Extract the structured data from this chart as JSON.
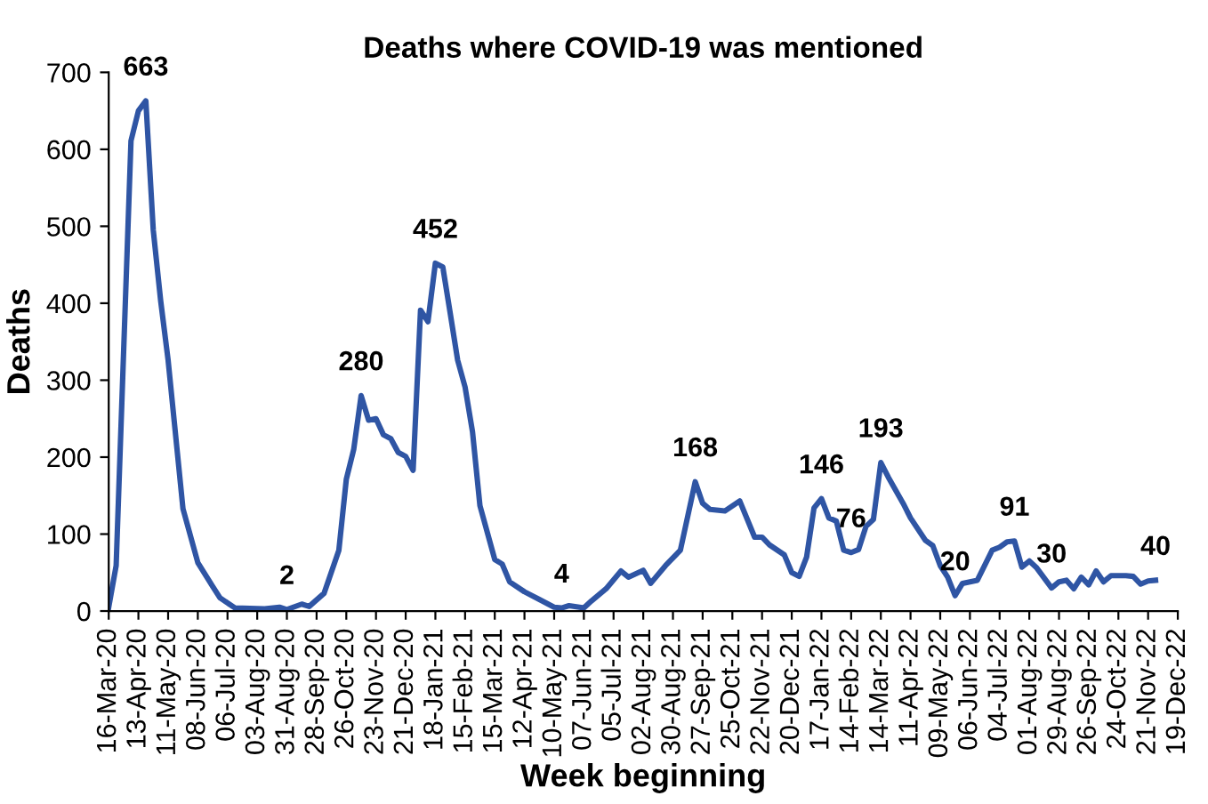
{
  "chart_data": {
    "type": "line",
    "title": "Deaths where COVID-19 was mentioned",
    "xlabel": "Week beginning",
    "ylabel": "Deaths",
    "x": [
      "2020-03-16",
      "2020-03-23",
      "2020-04-06",
      "2020-04-13",
      "2020-04-20",
      "2020-04-27",
      "2020-05-04",
      "2020-05-11",
      "2020-05-25",
      "2020-06-08",
      "2020-06-22",
      "2020-06-29",
      "2020-07-13",
      "2020-08-10",
      "2020-08-24",
      "2020-08-31",
      "2020-09-14",
      "2020-09-21",
      "2020-10-05",
      "2020-10-19",
      "2020-10-26",
      "2020-11-02",
      "2020-11-09",
      "2020-11-16",
      "2020-11-23",
      "2020-11-30",
      "2020-12-07",
      "2020-12-14",
      "2020-12-21",
      "2020-12-28",
      "2021-01-04",
      "2021-01-11",
      "2021-01-18",
      "2021-01-25",
      "2021-02-01",
      "2021-02-08",
      "2021-02-15",
      "2021-02-22",
      "2021-03-01",
      "2021-03-15",
      "2021-03-22",
      "2021-03-29",
      "2021-04-12",
      "2021-04-26",
      "2021-05-10",
      "2021-05-17",
      "2021-05-24",
      "2021-06-07",
      "2021-06-14",
      "2021-06-28",
      "2021-07-12",
      "2021-07-19",
      "2021-08-02",
      "2021-08-09",
      "2021-08-23",
      "2021-09-06",
      "2021-09-20",
      "2021-09-27",
      "2021-10-04",
      "2021-10-18",
      "2021-11-01",
      "2021-11-15",
      "2021-11-22",
      "2021-11-29",
      "2021-12-13",
      "2021-12-20",
      "2021-12-27",
      "2022-01-03",
      "2022-01-10",
      "2022-01-17",
      "2022-01-24",
      "2022-01-31",
      "2022-02-07",
      "2022-02-14",
      "2022-02-21",
      "2022-02-28",
      "2022-03-07",
      "2022-03-14",
      "2022-03-21",
      "2022-04-04",
      "2022-04-11",
      "2022-04-25",
      "2022-05-02",
      "2022-05-09",
      "2022-05-16",
      "2022-05-23",
      "2022-05-30",
      "2022-06-13",
      "2022-06-27",
      "2022-07-04",
      "2022-07-11",
      "2022-07-18",
      "2022-07-25",
      "2022-08-01",
      "2022-08-08",
      "2022-08-22",
      "2022-08-29",
      "2022-09-05",
      "2022-09-12",
      "2022-09-19",
      "2022-09-26",
      "2022-10-03",
      "2022-10-10",
      "2022-10-17",
      "2022-10-31",
      "2022-11-07",
      "2022-11-14",
      "2022-11-21",
      "2022-11-28"
    ],
    "series": [
      {
        "color": "#2f55a4",
        "values": [
          5,
          59,
          611,
          650,
          663,
          495,
          403,
          326,
          133,
          63,
          32,
          17,
          4,
          3,
          5,
          2,
          9,
          6,
          23,
          79,
          171,
          210,
          280,
          248,
          250,
          229,
          224,
          206,
          201,
          183,
          391,
          376,
          452,
          447,
          387,
          326,
          291,
          233,
          137,
          67,
          61,
          38,
          25,
          15,
          5,
          4,
          7,
          4,
          13,
          29,
          52,
          44,
          53,
          36,
          59,
          79,
          168,
          140,
          132,
          130,
          143,
          96,
          96,
          86,
          73,
          50,
          45,
          70,
          134,
          146,
          121,
          117,
          79,
          76,
          80,
          110,
          119,
          193,
          174,
          140,
          121,
          92,
          85,
          59,
          44,
          20,
          36,
          40,
          79,
          83,
          90,
          91,
          57,
          65,
          56,
          30,
          38,
          40,
          29,
          44,
          34,
          52,
          38,
          46,
          46,
          45,
          35,
          39,
          40
        ],
        "value_labels": [
          null,
          null,
          null,
          null,
          "663",
          null,
          null,
          null,
          null,
          null,
          null,
          null,
          null,
          null,
          null,
          "2",
          null,
          null,
          null,
          null,
          null,
          null,
          "280",
          null,
          null,
          null,
          null,
          null,
          null,
          null,
          null,
          null,
          "452",
          null,
          null,
          null,
          null,
          null,
          null,
          null,
          null,
          null,
          null,
          null,
          null,
          "4",
          null,
          null,
          null,
          null,
          null,
          null,
          null,
          null,
          null,
          null,
          "168",
          null,
          null,
          null,
          null,
          null,
          null,
          null,
          null,
          null,
          null,
          null,
          null,
          "146",
          null,
          null,
          null,
          "76",
          null,
          null,
          null,
          "193",
          null,
          null,
          null,
          null,
          null,
          null,
          null,
          "20",
          null,
          null,
          null,
          null,
          null,
          "91",
          null,
          null,
          null,
          "30",
          null,
          null,
          null,
          null,
          null,
          null,
          null,
          null,
          null,
          null,
          null,
          null,
          "40"
        ]
      }
    ],
    "xlim": [
      "2020-03-16",
      "2022-12-19"
    ],
    "xticks": [
      {
        "value": "2020-03-16",
        "label": "16-Mar-20"
      },
      {
        "value": "2020-04-13",
        "label": "13-Apr-20"
      },
      {
        "value": "2020-05-11",
        "label": "11-May-20"
      },
      {
        "value": "2020-06-08",
        "label": "08-Jun-20"
      },
      {
        "value": "2020-07-06",
        "label": "06-Jul-20"
      },
      {
        "value": "2020-08-03",
        "label": "03-Aug-20"
      },
      {
        "value": "2020-08-31",
        "label": "31-Aug-20"
      },
      {
        "value": "2020-09-28",
        "label": "28-Sep-20"
      },
      {
        "value": "2020-10-26",
        "label": "26-Oct-20"
      },
      {
        "value": "2020-11-23",
        "label": "23-Nov-20"
      },
      {
        "value": "2020-12-21",
        "label": "21-Dec-20"
      },
      {
        "value": "2021-01-18",
        "label": "18-Jan-21"
      },
      {
        "value": "2021-02-15",
        "label": "15-Feb-21"
      },
      {
        "value": "2021-03-15",
        "label": "15-Mar-21"
      },
      {
        "value": "2021-04-12",
        "label": "12-Apr-21"
      },
      {
        "value": "2021-05-10",
        "label": "10-May-21"
      },
      {
        "value": "2021-06-07",
        "label": "07-Jun-21"
      },
      {
        "value": "2021-07-05",
        "label": "05-Jul-21"
      },
      {
        "value": "2021-08-02",
        "label": "02-Aug-21"
      },
      {
        "value": "2021-08-30",
        "label": "30-Aug-21"
      },
      {
        "value": "2021-09-27",
        "label": "27-Sep-21"
      },
      {
        "value": "2021-10-25",
        "label": "25-Oct-21"
      },
      {
        "value": "2021-11-22",
        "label": "22-Nov-21"
      },
      {
        "value": "2021-12-20",
        "label": "20-Dec-21"
      },
      {
        "value": "2022-01-17",
        "label": "17-Jan-22"
      },
      {
        "value": "2022-02-14",
        "label": "14-Feb-22"
      },
      {
        "value": "2022-03-14",
        "label": "14-Mar-22"
      },
      {
        "value": "2022-04-11",
        "label": "11-Apr-22"
      },
      {
        "value": "2022-05-09",
        "label": "09-May-22"
      },
      {
        "value": "2022-06-06",
        "label": "06-Jun-22"
      },
      {
        "value": "2022-07-04",
        "label": "04-Jul-22"
      },
      {
        "value": "2022-08-01",
        "label": "01-Aug-22"
      },
      {
        "value": "2022-08-29",
        "label": "29-Aug-22"
      },
      {
        "value": "2022-09-26",
        "label": "26-Sep-22"
      },
      {
        "value": "2022-10-24",
        "label": "24-Oct-22"
      },
      {
        "value": "2022-11-21",
        "label": "21-Nov-22"
      },
      {
        "value": "2022-12-19",
        "label": "19-Dec-22"
      }
    ],
    "ylim": [
      0,
      700
    ],
    "yticks": [
      0,
      100,
      200,
      300,
      400,
      500,
      600,
      700
    ],
    "grid": false,
    "marker": "none",
    "line_style": "solid"
  }
}
